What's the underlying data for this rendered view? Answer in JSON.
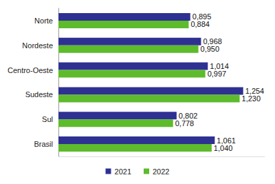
{
  "chart_data": {
    "type": "bar",
    "orientation": "horizontal",
    "categories": [
      "Norte",
      "Nordeste",
      "Centro-Oeste",
      "Sudeste",
      "Sul",
      "Brasil"
    ],
    "series": [
      {
        "name": "2021",
        "color": "#2e3192",
        "values": [
          0.895,
          0.968,
          1.014,
          1.254,
          0.802,
          1.061
        ],
        "value_labels": [
          "0,895",
          "0,968",
          "1,014",
          "1,254",
          "0,802",
          "1,061"
        ]
      },
      {
        "name": "2022",
        "color": "#5dbb2c",
        "values": [
          0.884,
          0.95,
          0.997,
          1.23,
          0.778,
          1.04
        ],
        "value_labels": [
          "0,884",
          "0,950",
          "0,997",
          "1,230",
          "0,778",
          "1,040"
        ]
      }
    ],
    "xlim": [
      0,
      1.4
    ],
    "tick_labels": "y",
    "data_labels": true,
    "legend": "bottom",
    "grid": false
  }
}
